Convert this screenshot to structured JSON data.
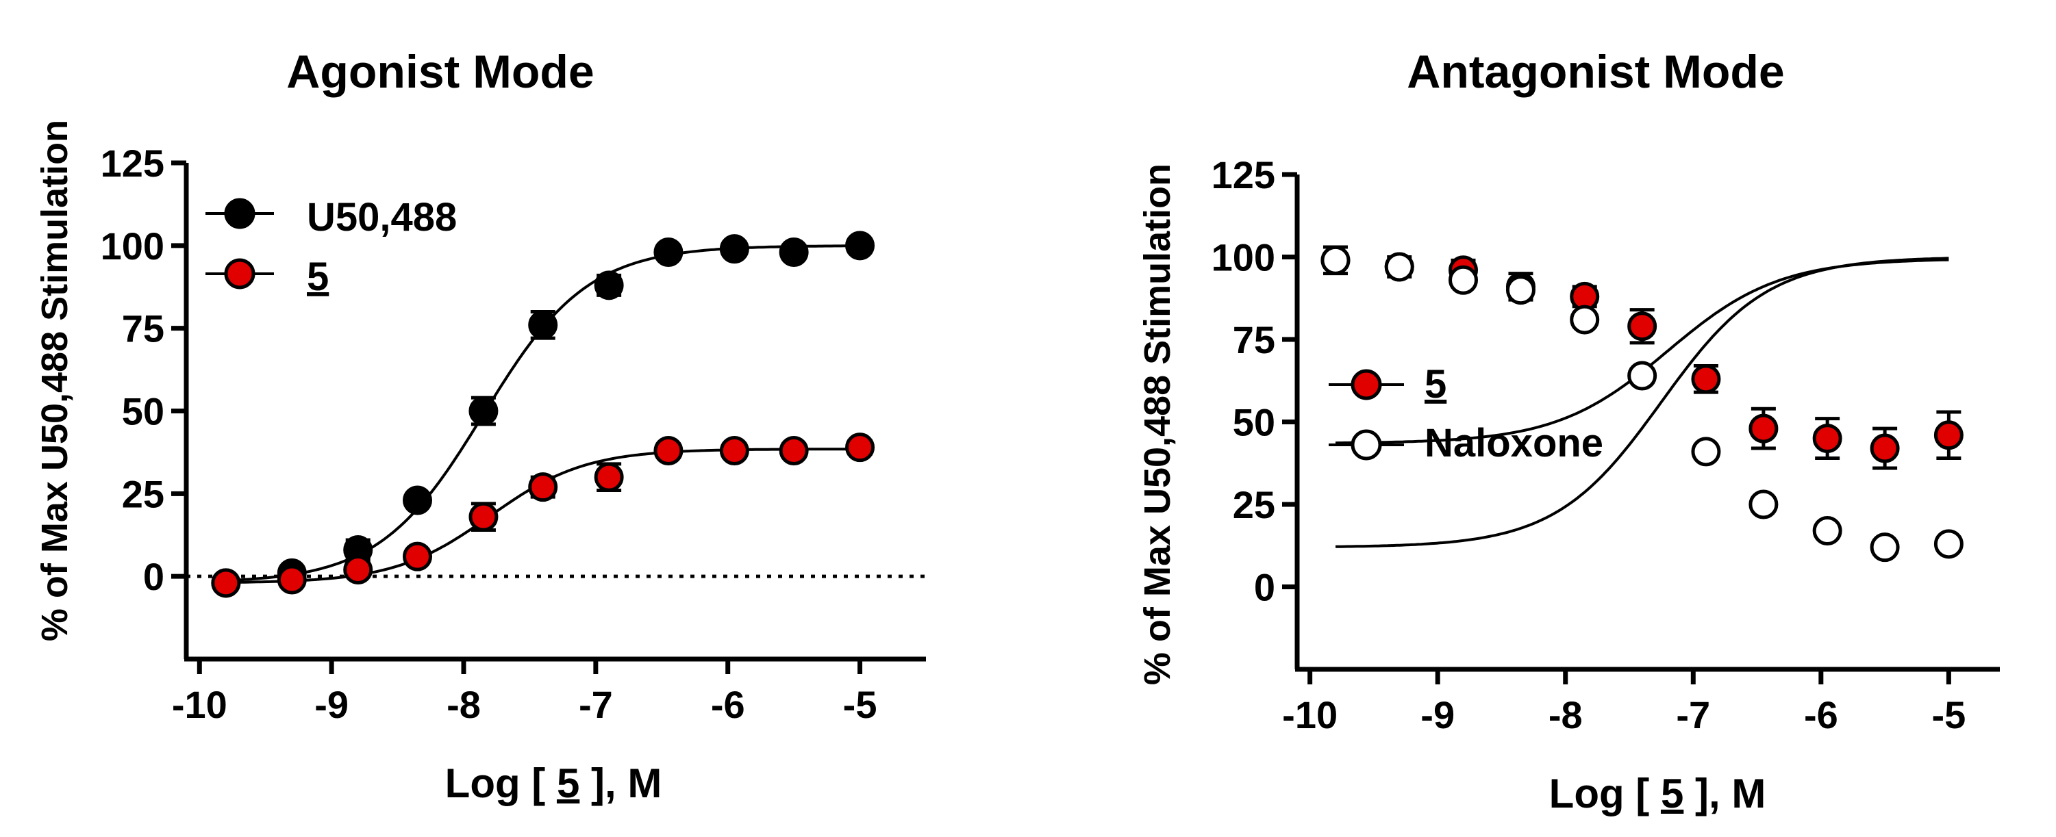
{
  "colors": {
    "axis": "#000000",
    "black_marker": "#000000",
    "red_marker": "#e00000",
    "open_marker": "#ffffff",
    "background": "#ffffff"
  },
  "chart_data": [
    {
      "type": "scatter",
      "id": "agonist",
      "title": "Agonist Mode",
      "xlabel": "Log [ 5 ], M",
      "xlabel_parts": [
        "Log [ ",
        "5",
        " ], M"
      ],
      "ylabel": "% of Max U50,488 Stimulation",
      "xlim": [
        -10.1,
        -4.5
      ],
      "ylim": [
        -25,
        125
      ],
      "xticks": [
        -10,
        -9,
        -8,
        -7,
        -6,
        -5
      ],
      "xtick_labels": [
        "-10",
        "-9",
        "-8",
        "-7",
        "-6",
        "-5"
      ],
      "yticks": [
        0,
        25,
        50,
        75,
        100,
        125
      ],
      "ytick_labels": [
        "0",
        "25",
        "50",
        "75",
        "100",
        "125"
      ],
      "reference_line": 0,
      "legend_position": "top-left",
      "series": [
        {
          "name": "U50,488",
          "underline": false,
          "style": "filled-black",
          "x": [
            -9.8,
            -9.3,
            -8.8,
            -8.35,
            -7.85,
            -7.4,
            -6.9,
            -6.45,
            -5.95,
            -5.5,
            -5.0
          ],
          "y": [
            -2,
            1,
            8,
            23,
            50,
            76,
            88,
            98,
            99,
            98,
            100
          ],
          "err": [
            0,
            0,
            3,
            0,
            4,
            4,
            3,
            2,
            2,
            2,
            1
          ],
          "fit": {
            "bottom": -2,
            "top": 100,
            "logec50": -7.85,
            "hill": 1.1
          }
        },
        {
          "name": "5",
          "underline": true,
          "style": "filled-red",
          "x": [
            -9.8,
            -9.3,
            -8.8,
            -8.35,
            -7.85,
            -7.4,
            -6.9,
            -6.45,
            -5.95,
            -5.5,
            -5.0
          ],
          "y": [
            -2,
            -1,
            2,
            6,
            18,
            27,
            30,
            38,
            38,
            38,
            39
          ],
          "err": [
            0,
            0,
            0,
            0,
            4,
            3,
            4,
            2,
            2,
            2,
            2
          ],
          "fit": {
            "bottom": -2,
            "top": 38.5,
            "logec50": -7.8,
            "hill": 1.2
          }
        }
      ]
    },
    {
      "type": "scatter",
      "id": "antagonist",
      "title": "Antagonist Mode",
      "xlabel": "Log [ 5 ], M",
      "xlabel_parts": [
        "Log [ ",
        "5",
        " ], M"
      ],
      "ylabel": "% of Max U50,488 Stimulation",
      "xlim": [
        -10.1,
        -4.6
      ],
      "ylim": [
        -25,
        125
      ],
      "xticks": [
        -10,
        -9,
        -8,
        -7,
        -6,
        -5
      ],
      "xtick_labels": [
        "-10",
        "-9",
        "-8",
        "-7",
        "-6",
        "-5"
      ],
      "yticks": [
        0,
        25,
        50,
        75,
        100,
        125
      ],
      "ytick_labels": [
        "0",
        "25",
        "50",
        "75",
        "100",
        "125"
      ],
      "legend_position": "center-left",
      "series": [
        {
          "name": "5",
          "underline": true,
          "style": "filled-red",
          "x": [
            -9.8,
            -9.3,
            -8.8,
            -8.35,
            -7.85,
            -7.4,
            -6.9,
            -6.45,
            -5.95,
            -5.5,
            -5.0
          ],
          "y": [
            99,
            97,
            96,
            91,
            88,
            79,
            63,
            48,
            45,
            42,
            46
          ],
          "err": [
            4,
            3,
            3,
            4,
            3,
            5,
            4,
            6,
            6,
            6,
            7
          ],
          "fit": {
            "bottom": 43.5,
            "top": 99.5,
            "logec50": -7.2,
            "hill": 1.0
          }
        },
        {
          "name": "Naloxone",
          "underline": false,
          "style": "open",
          "x": [
            -9.8,
            -9.3,
            -8.8,
            -8.35,
            -7.85,
            -7.4,
            -6.9,
            -6.45,
            -5.95,
            -5.5,
            -5.0
          ],
          "y": [
            99,
            97,
            93,
            90,
            81,
            64,
            41,
            25,
            17,
            12,
            13
          ],
          "err": [
            0,
            0,
            2,
            0,
            2,
            2,
            2,
            1,
            1,
            1,
            1
          ],
          "fit": {
            "bottom": 12,
            "top": 100,
            "logec50": -7.25,
            "hill": 1.05
          }
        }
      ]
    }
  ]
}
